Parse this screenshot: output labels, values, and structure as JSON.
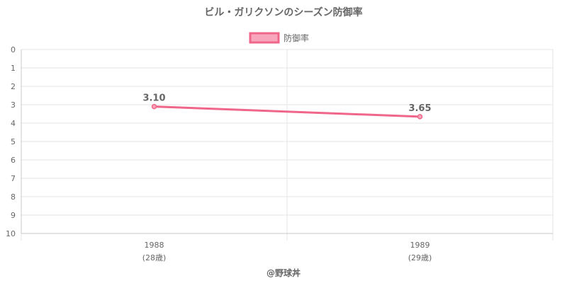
{
  "chart_data": {
    "type": "line",
    "title": "ビル・ガリクソンのシーズン防御率",
    "x": [
      "1988",
      "1989"
    ],
    "x_sublabels": [
      "(28歳)",
      "(29歳)"
    ],
    "series": [
      {
        "name": "防御率",
        "values": [
          3.1,
          3.65
        ],
        "data_labels": [
          "3.10",
          "3.65"
        ],
        "color": "#f0658a",
        "fill_color": "#f7a6bb"
      }
    ],
    "y_axis": {
      "min": 0,
      "max": 10,
      "reversed": true,
      "ticks": [
        "0",
        "1",
        "2",
        "3",
        "4",
        "5",
        "6",
        "7",
        "8",
        "9",
        "10"
      ]
    },
    "grid": true,
    "legend_position": "top"
  },
  "credit": "@野球丼",
  "colors": {
    "grid": "#e6e6e6",
    "axis": "#c8c8c8",
    "text": "#666666"
  }
}
